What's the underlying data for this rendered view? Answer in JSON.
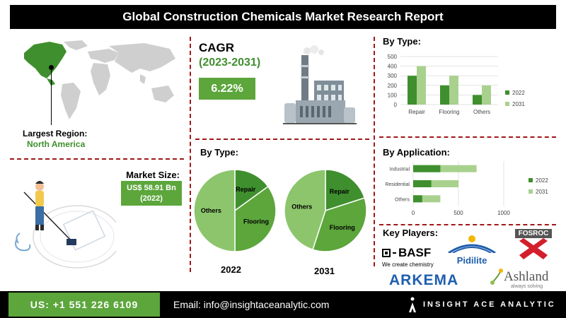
{
  "title": "Global Construction Chemicals Market Research Report",
  "region": {
    "label": "Largest Region:",
    "value": "North America"
  },
  "market_size": {
    "label": "Market Size:",
    "value": "US$ 58.91 Bn",
    "year": "(2022)"
  },
  "cagr": {
    "label": "CAGR",
    "period": "(2023-2031)",
    "value": "6.22%"
  },
  "pie_section": {
    "heading": "By Type:",
    "year_a": "2022",
    "year_b": "2031"
  },
  "colors": {
    "dark_green": "#3f8f2e",
    "mid_green": "#5ca63c",
    "light_green": "#8cc56b",
    "pale_green": "#a9d18e",
    "dash_red": "#a01818"
  },
  "chart_data": [
    {
      "type": "bar",
      "title": "By Type:",
      "categories": [
        "Repair",
        "Flooring",
        "Others"
      ],
      "series": [
        {
          "name": "2022",
          "values": [
            300,
            200,
            100
          ],
          "color": "#3f8f2e"
        },
        {
          "name": "2031",
          "values": [
            400,
            300,
            200
          ],
          "color": "#a9d18e"
        }
      ],
      "ylim": [
        0,
        500
      ],
      "yticks": [
        "0",
        "100",
        "200",
        "300",
        "400",
        "500"
      ],
      "legend": "right"
    },
    {
      "type": "bar",
      "orientation": "horizontal",
      "title": "By Application:",
      "categories": [
        "Industrial",
        "Residential",
        "Others"
      ],
      "series": [
        {
          "name": "2022",
          "values": [
            300,
            200,
            100
          ],
          "color": "#3f8f2e"
        },
        {
          "name": "2031",
          "values": [
            700,
            500,
            300
          ],
          "color": "#a9d18e"
        }
      ],
      "xlim": [
        0,
        1000
      ],
      "xticks": [
        "0",
        "500",
        "1000"
      ],
      "legend": "right"
    },
    {
      "type": "pie",
      "label": "2022",
      "slices": [
        {
          "label": "Repair",
          "value": 15,
          "color": "#3f8f2e"
        },
        {
          "label": "Flooring",
          "value": 35,
          "color": "#5ca63c"
        },
        {
          "label": "Others",
          "value": 50,
          "color": "#8cc56b"
        }
      ]
    },
    {
      "type": "pie",
      "label": "2031",
      "slices": [
        {
          "label": "Repair",
          "value": 20,
          "color": "#3f8f2e"
        },
        {
          "label": "Flooring",
          "value": 35,
          "color": "#5ca63c"
        },
        {
          "label": "Others",
          "value": 45,
          "color": "#8cc56b"
        }
      ]
    }
  ],
  "key_players": {
    "heading": "Key Players:",
    "basf": {
      "name": "BASF",
      "tagline": "We create chemistry"
    },
    "pidilite": "Pidilite",
    "fosroc": "FOSROC",
    "arkema": "ARKEMA",
    "ashland": {
      "name": "Ashland",
      "tagline": "always solving"
    }
  },
  "footer": {
    "phone": "US: +1 551 226 6109",
    "email": "Email: info@insightaceanalytic.com",
    "brand": "INSIGHT ACE ANALYTIC"
  }
}
